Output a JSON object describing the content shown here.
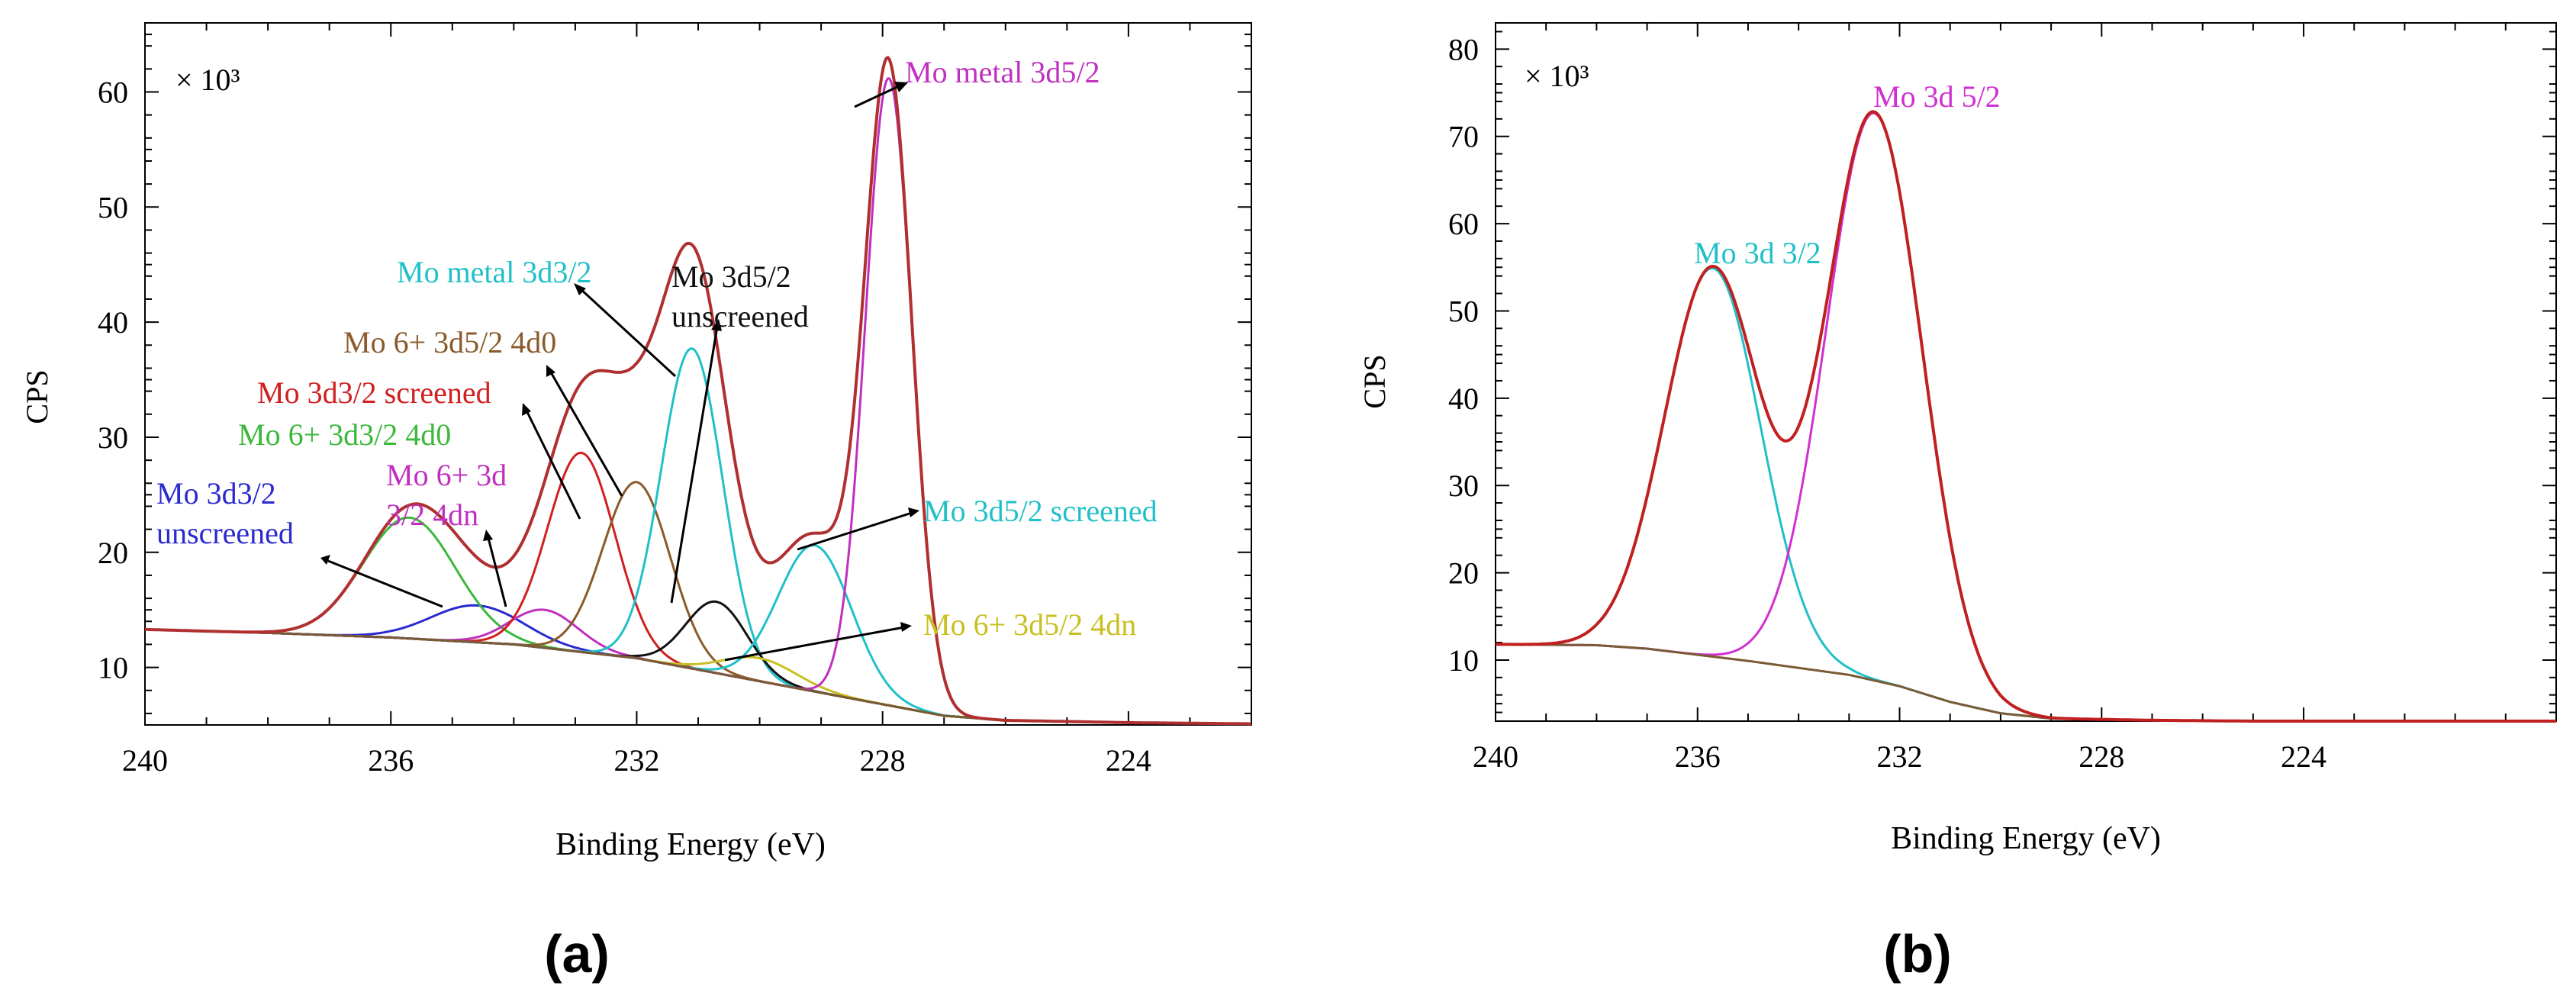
{
  "chart_data": [
    {
      "type": "line",
      "panel_label": "(a)",
      "xlabel": "Binding Energy (eV)",
      "ylabel": "CPS",
      "multiplier": "× 10³",
      "xlim": [
        240,
        222.0
      ],
      "ylim": [
        5,
        66
      ],
      "x_ticks": [
        240,
        236,
        232,
        228,
        224
      ],
      "y_ticks": [
        10,
        20,
        30,
        40,
        50,
        60
      ],
      "baseline": {
        "name": "Background",
        "color": "#7a5a34",
        "points": [
          [
            240,
            13.3
          ],
          [
            238,
            13.0
          ],
          [
            236,
            12.6
          ],
          [
            234,
            12.0
          ],
          [
            232,
            10.8
          ],
          [
            230,
            8.8
          ],
          [
            228,
            6.8
          ],
          [
            227,
            5.8
          ],
          [
            226,
            5.4
          ],
          [
            224,
            5.2
          ],
          [
            222,
            5.1
          ]
        ]
      },
      "series": [
        {
          "name": "Mo 3d3/2 unscreened",
          "color": "#2a2ad0",
          "center": 234.6,
          "height": 3.2,
          "sigma": 0.75
        },
        {
          "name": "Mo 6+ 3d3/2 4d0",
          "color": "#3cb83c",
          "center": 235.7,
          "height": 10.5,
          "sigma": 0.75
        },
        {
          "name": "Mo 6+ 3d 3/2 4dn",
          "color": "#c030c0",
          "center": 233.5,
          "height": 3.3,
          "sigma": 0.55
        },
        {
          "name": "Mo 3d3/2 screened",
          "color": "#d02020",
          "center": 232.9,
          "height": 17.3,
          "sigma": 0.55
        },
        {
          "name": "Mo 6+ 3d5/2 4d0",
          "color": "#8a5a2a",
          "center": 232.0,
          "height": 15.3,
          "sigma": 0.55
        },
        {
          "name": "Mo metal 3d3/2",
          "color": "#20c0c8",
          "center": 231.1,
          "height": 27.8,
          "sigma": 0.5
        },
        {
          "name": "Mo 3d5/2 unscreened",
          "color": "#111111",
          "center": 230.7,
          "height": 6.2,
          "sigma": 0.5
        },
        {
          "name": "Mo 6+ 3d5/2 4dn",
          "color": "#c8c020",
          "center": 230.0,
          "height": 2.0,
          "sigma": 0.6
        },
        {
          "name": "Mo 3d5/2 screened",
          "color": "#20c0c8",
          "center": 229.1,
          "height": 12.7,
          "sigma": 0.6
        },
        {
          "name": "Mo metal 3d5/2",
          "color": "#c030c0",
          "center": 227.9,
          "height": 54.5,
          "sigma": 0.38
        }
      ],
      "envelope": {
        "name": "Envelope",
        "color": "#b03030"
      },
      "annotations": [
        {
          "text": "Mo metal 3d5/2",
          "color": "#c030c0"
        },
        {
          "text": "Mo metal 3d3/2",
          "color": "#20c0c8"
        },
        {
          "text": "Mo 3d5/2",
          "color": "#111111"
        },
        {
          "text": "unscreened",
          "color": "#111111"
        },
        {
          "text": "Mo 6+ 3d5/2 4d0",
          "color": "#8a5a2a"
        },
        {
          "text": "Mo 3d3/2 screened",
          "color": "#d02020"
        },
        {
          "text": "Mo 6+ 3d3/2 4d0",
          "color": "#3cb83c"
        },
        {
          "text": "Mo 6+ 3d",
          "color": "#c030c0"
        },
        {
          "text": "3/2 4dn",
          "color": "#c030c0"
        },
        {
          "text": "Mo 3d3/2",
          "color": "#2a2ad0"
        },
        {
          "text": "unscreened",
          "color": "#2a2ad0"
        },
        {
          "text": "Mo 3d5/2 screened",
          "color": "#20c0c8"
        },
        {
          "text": "Mo 6+ 3d5/2 4dn",
          "color": "#c8c020"
        }
      ]
    },
    {
      "type": "line",
      "panel_label": "(b)",
      "xlabel": "Binding Energy (eV)",
      "ylabel": "CPS",
      "multiplier": "× 10³",
      "xlim": [
        240,
        219.0
      ],
      "ylim": [
        3,
        83
      ],
      "x_ticks": [
        240,
        236,
        232,
        228,
        224
      ],
      "y_ticks": [
        10,
        20,
        30,
        40,
        50,
        60,
        70,
        80
      ],
      "baseline": {
        "name": "Background",
        "color": "#7a5a34",
        "points": [
          [
            240,
            11.8
          ],
          [
            238,
            11.7
          ],
          [
            237,
            11.3
          ],
          [
            236,
            10.6
          ],
          [
            235,
            9.9
          ],
          [
            234,
            9.1
          ],
          [
            233,
            8.3
          ],
          [
            232,
            7.0
          ],
          [
            231,
            5.2
          ],
          [
            230,
            3.9
          ],
          [
            229,
            3.3
          ],
          [
            227,
            3.1
          ],
          [
            225,
            3.0
          ],
          [
            219,
            3.0
          ]
        ]
      },
      "series": [
        {
          "name": "Mo 3d 3/2",
          "color": "#20c0c8",
          "center": 235.7,
          "height": 44.5,
          "sigma": 0.95
        },
        {
          "name": "Mo 3d 5/2",
          "color": "#d030d0",
          "center": 232.5,
          "height": 65.0,
          "sigma": 0.95
        }
      ],
      "envelope": {
        "name": "Envelope",
        "color": "#c02020"
      },
      "annotations": [
        {
          "text": "Mo 3d 5/2",
          "color": "#d030d0"
        },
        {
          "text": "Mo 3d 3/2",
          "color": "#20c0c8"
        }
      ]
    }
  ]
}
